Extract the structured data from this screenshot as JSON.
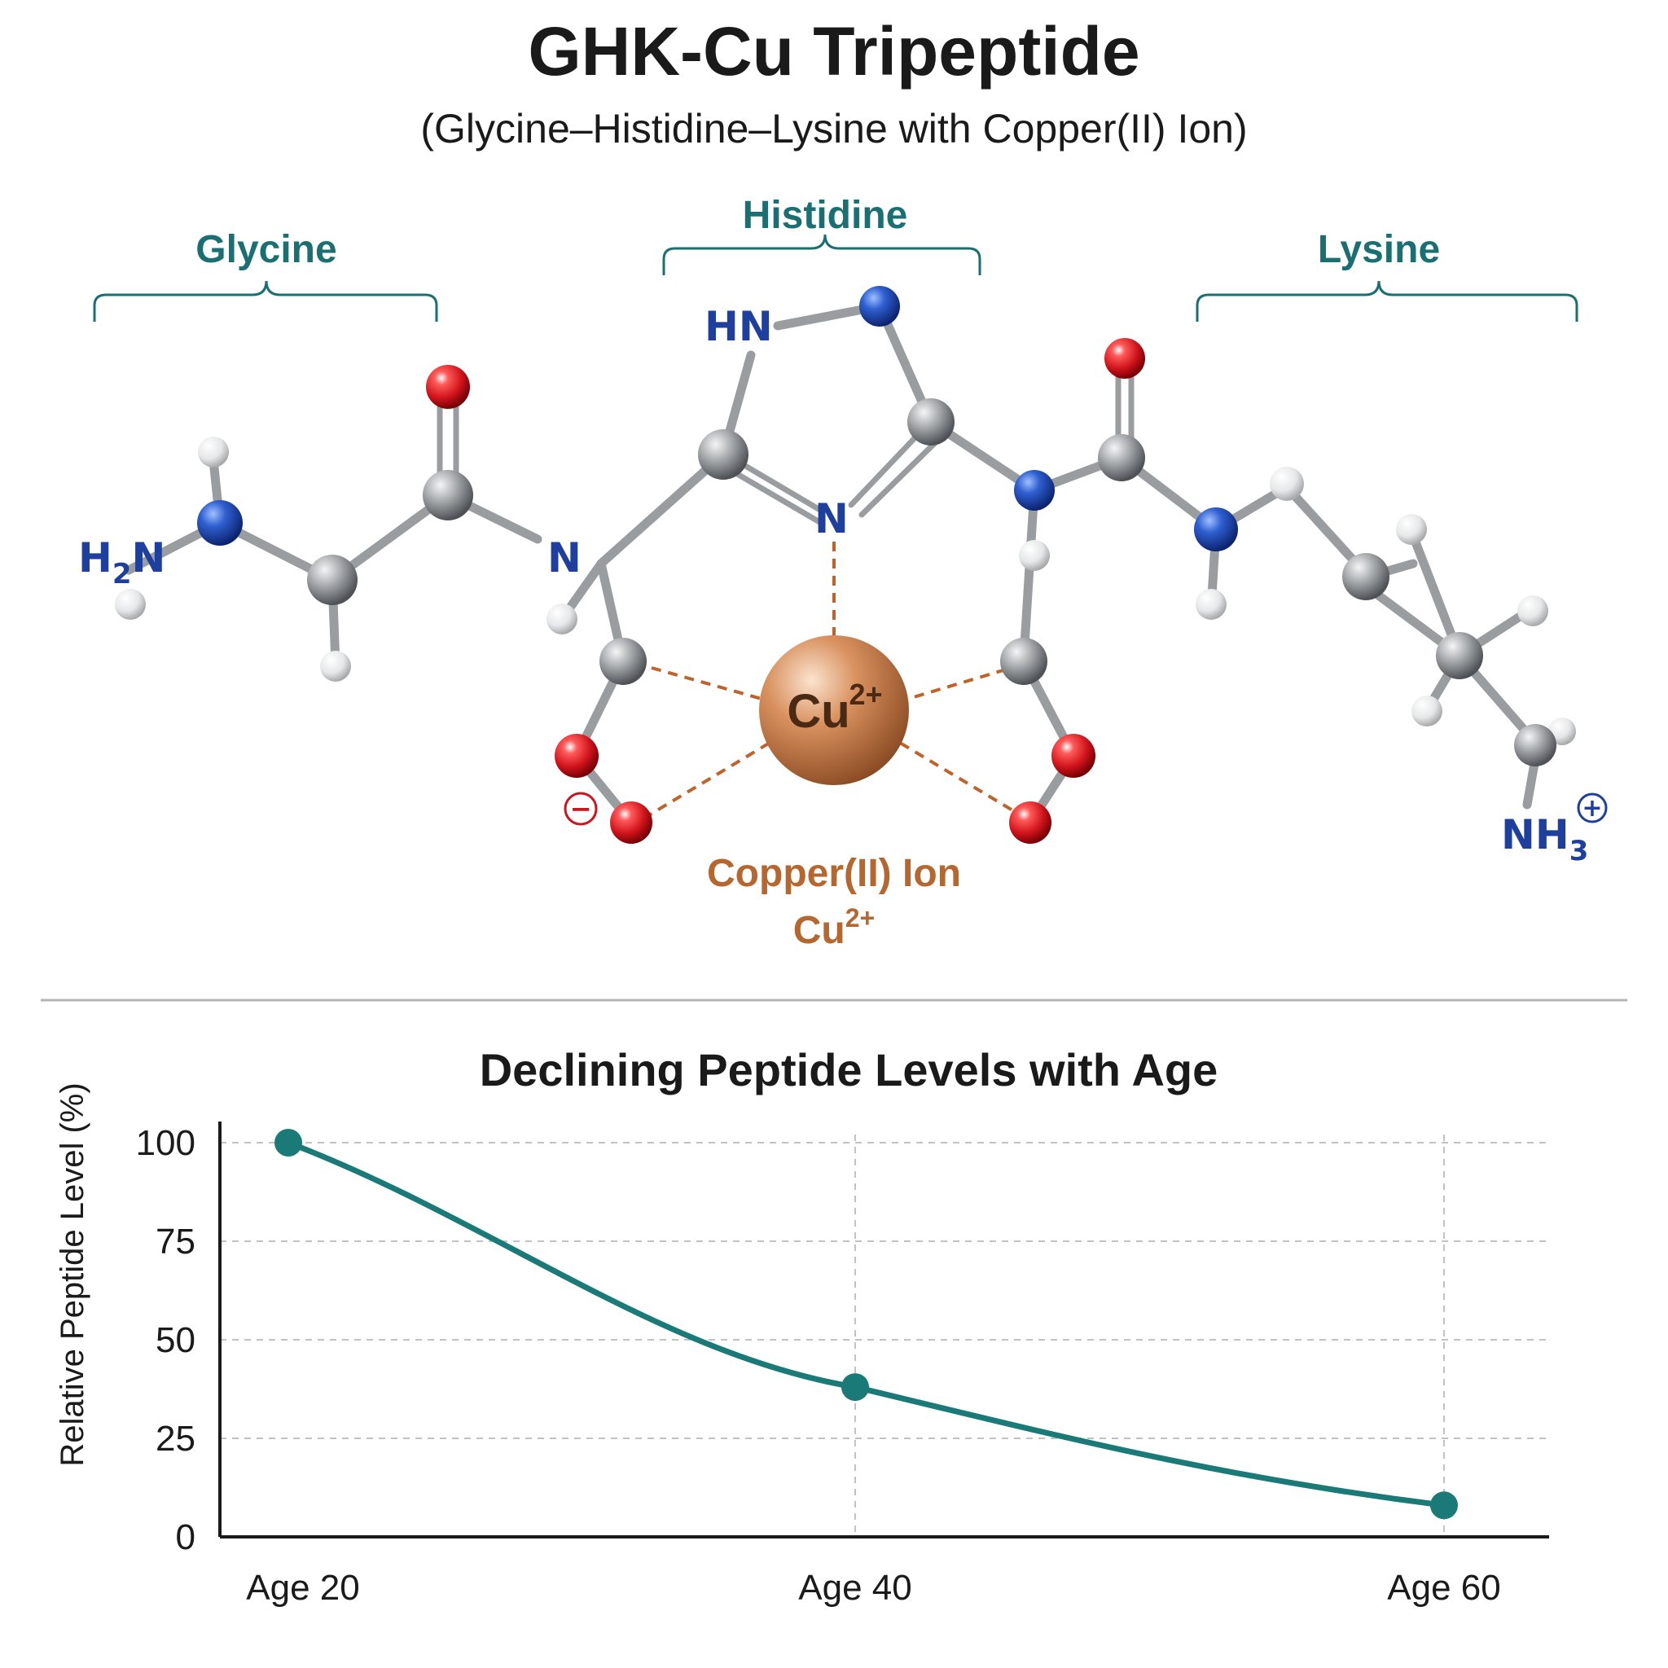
{
  "title": "GHK-Cu Tripeptide",
  "subtitle": "(Glycine–Histidine–Lysine with Copper(II) Ion)",
  "segments": {
    "glycine": "Glycine",
    "histidine": "Histidine",
    "lysine": "Lysine"
  },
  "atom_labels": {
    "h2n_h": "H",
    "h2n_sub": "2",
    "h2n_n": "N",
    "amide_n": "N",
    "hn": "HN",
    "ring_n": "N",
    "nh3_nh": "NH",
    "nh3_sub": "3",
    "plus": "+",
    "minus": "−"
  },
  "copper": {
    "symbol": "Cu",
    "charge": "2+",
    "caption": "Copper(II) Ion",
    "caption_symbol": "Cu",
    "caption_charge": "2+"
  },
  "colors": {
    "teal": "#1a6f73",
    "nitrogen": "#1f3f9f",
    "oxygen": "#d0141b",
    "copper": "#c7764a",
    "carbon": "#8a8d90",
    "line": "#1a7a78"
  },
  "chart_data": {
    "type": "line",
    "title": "Declining Peptide Levels with Age",
    "xlabel": "",
    "ylabel": "Relative Peptide Level (%)",
    "categories": [
      "Age 20",
      "Age 40",
      "Age 60"
    ],
    "x": [
      20,
      40,
      60
    ],
    "values": [
      100,
      38,
      8
    ],
    "yticks": [
      0,
      25,
      50,
      75,
      100
    ],
    "ylim": [
      0,
      100
    ],
    "grid": true
  }
}
